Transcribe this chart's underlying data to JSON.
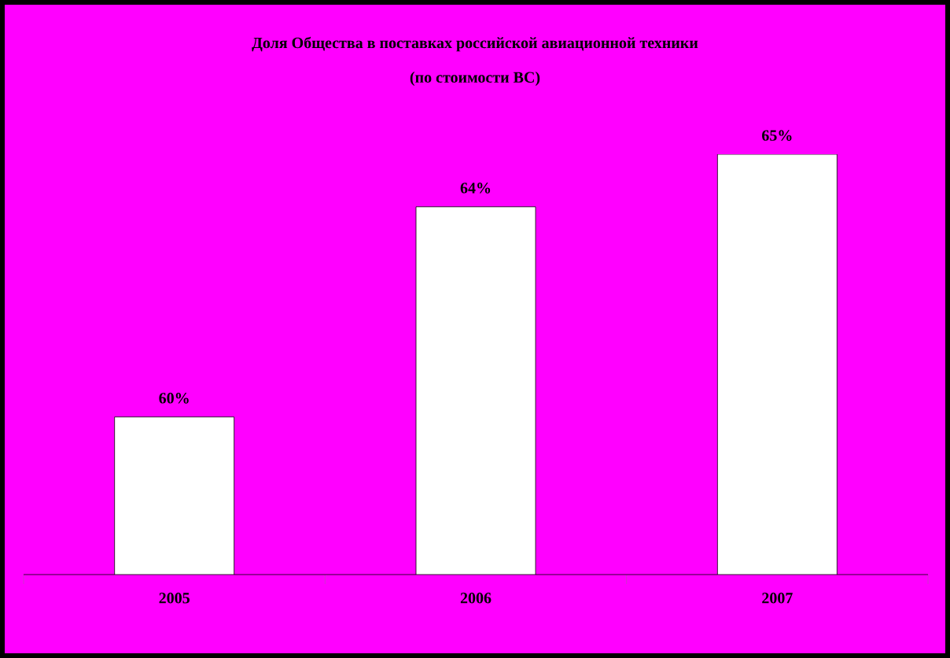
{
  "chart_data": {
    "type": "bar",
    "title": "Доля Общества в поставках российской авиационной техники",
    "subtitle": "(по стоимости ВС)",
    "categories": [
      "2005",
      "2006",
      "2007"
    ],
    "values": [
      60,
      64,
      65
    ],
    "value_labels": [
      "60%",
      "64%",
      "65%"
    ],
    "color": "#ffffff",
    "ylim": [
      57,
      65
    ],
    "tick_labels": "x"
  }
}
